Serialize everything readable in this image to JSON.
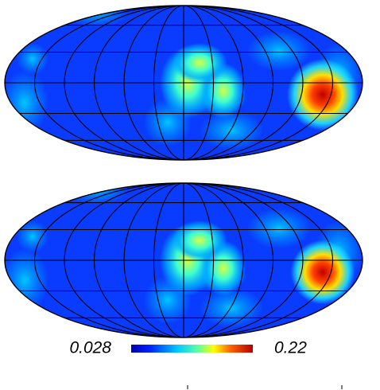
{
  "colorbar": {
    "min": 0.028,
    "max": 0.22,
    "min_label": "0.028",
    "max_label": "0.22"
  }
}
